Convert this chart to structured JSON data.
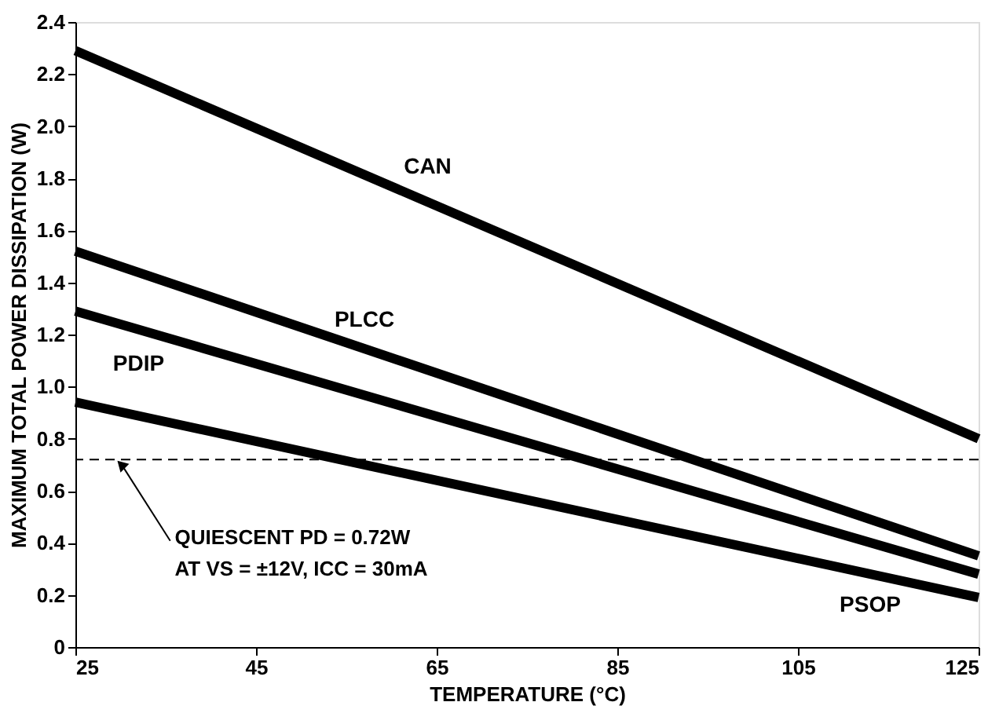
{
  "chart_data": {
    "type": "line",
    "xlabel": "TEMPERATURE (°C)",
    "ylabel": "MAXIMUM TOTAL POWER DISSIPATION (W)",
    "x": [
      25,
      125
    ],
    "series": [
      {
        "name": "CAN",
        "color": "#000000",
        "values": [
          2.29,
          0.8
        ]
      },
      {
        "name": "PLCC",
        "color": "#000000",
        "values": [
          1.52,
          0.35
        ]
      },
      {
        "name": "PDIP",
        "color": "#000000",
        "values": [
          1.29,
          0.28
        ]
      },
      {
        "name": "PSOP",
        "color": "#000000",
        "values": [
          0.94,
          0.19
        ]
      }
    ],
    "xlim": [
      25,
      125
    ],
    "xticks": [
      25,
      45,
      65,
      85,
      105,
      125
    ],
    "ylim": [
      0,
      2.4
    ],
    "yticks": [
      0,
      0.2,
      0.4,
      0.6,
      0.8,
      {
        "value": 1,
        "label": "1.0"
      },
      1.2,
      1.4,
      1.6,
      1.8,
      {
        "value": 2,
        "label": "2.0"
      },
      2.2,
      2.4
    ],
    "ref_lines": [
      {
        "axis": "y",
        "value": 0.72,
        "color": "#000000",
        "line_style": "dashed"
      }
    ],
    "annotations": [
      {
        "text": "QUIESCENT PD = 0.72W",
        "x": 30,
        "y": 0.72
      },
      "AT VS = ±12V, ICC = 30mA"
    ],
    "grid": false,
    "legend": false,
    "marker": "none",
    "line_style": "solid"
  }
}
